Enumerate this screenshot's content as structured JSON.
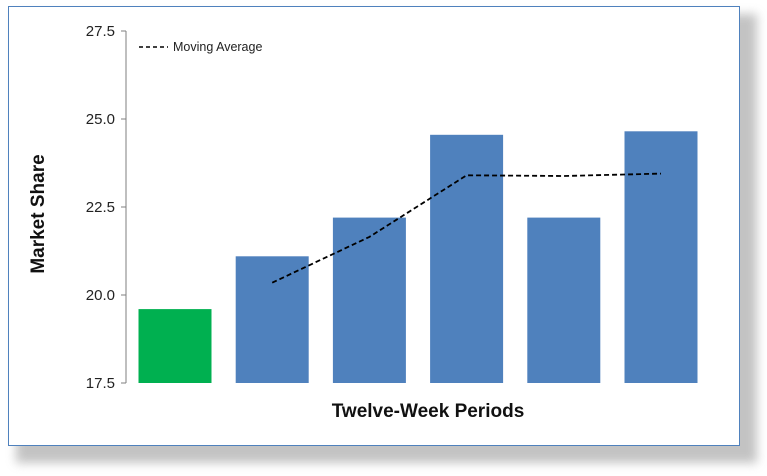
{
  "chart_data": {
    "type": "bar",
    "categories": [
      "",
      "",
      "",
      "",
      "",
      ""
    ],
    "values": [
      19.6,
      21.1,
      22.2,
      24.55,
      22.2,
      24.65
    ],
    "bar_colors": [
      "#00b050",
      "#4f81bd",
      "#4f81bd",
      "#4f81bd",
      "#4f81bd",
      "#4f81bd"
    ],
    "overlay_line": {
      "name": "Moving Average",
      "style": "dashed",
      "color": "#000000",
      "points": [
        {
          "category_index": 1,
          "value": 20.35
        },
        {
          "category_index": 2,
          "value": 21.65
        },
        {
          "category_index": 3,
          "value": 23.4
        },
        {
          "category_index": 4,
          "value": 23.38
        },
        {
          "category_index": 5,
          "value": 23.45
        }
      ]
    },
    "xlabel": "Twelve-Week Periods",
    "ylabel": "Market Share",
    "ylim": [
      17.5,
      27.5
    ],
    "yticks": [
      "17.5",
      "20.0",
      "22.5",
      "25.0",
      "27.5"
    ],
    "grid": false,
    "legend_position": "top-left"
  }
}
